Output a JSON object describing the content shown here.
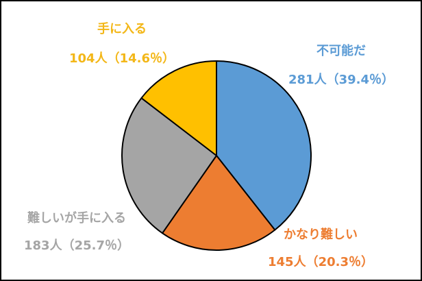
{
  "chart_data": {
    "type": "pie",
    "title": "",
    "start_angle_deg": 90,
    "direction": "clockwise",
    "slices": [
      {
        "name": "不可能だ",
        "count_label": "281人（39.4％）",
        "count": 281,
        "percent": 39.4,
        "color": "#5B9BD5"
      },
      {
        "name": "かなり難しい",
        "count_label": "145人（20.3％）",
        "count": 145,
        "percent": 20.3,
        "color": "#ED7D31"
      },
      {
        "name": "難しいが手に入る",
        "count_label": "183人（25.7％）",
        "count": 183,
        "percent": 25.7,
        "color": "#A5A5A5"
      },
      {
        "name": "手に入る",
        "count_label": "104人（14.6％）",
        "count": 104,
        "percent": 14.6,
        "color": "#FFC000"
      }
    ]
  }
}
